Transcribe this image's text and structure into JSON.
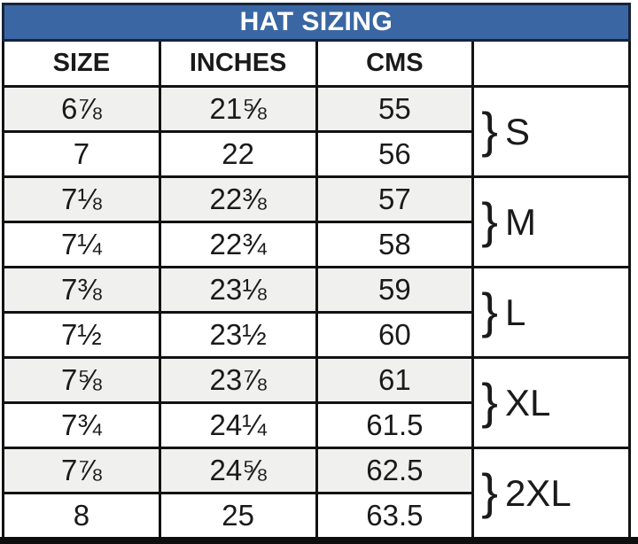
{
  "chart_data": {
    "type": "table",
    "title": "HAT SIZING",
    "columns": [
      "SIZE",
      "INCHES",
      "CMS",
      ""
    ],
    "rows": [
      [
        "6⅞",
        "21⅝",
        "55"
      ],
      [
        "7",
        "22",
        "56"
      ],
      [
        "7⅛",
        "22⅜",
        "57"
      ],
      [
        "7¼",
        "22¾",
        "58"
      ],
      [
        "7⅜",
        "23⅛",
        "59"
      ],
      [
        "7½",
        "23½",
        "60"
      ],
      [
        "7⅝",
        "23⅞",
        "61"
      ],
      [
        "7¾",
        "24¼",
        "61.5"
      ],
      [
        "7⅞",
        "24⅝",
        "62.5"
      ],
      [
        "8",
        "25",
        "63.5"
      ]
    ],
    "row_groups": [
      {
        "label": "S",
        "rows": [
          0,
          1
        ]
      },
      {
        "label": "M",
        "rows": [
          2,
          3
        ]
      },
      {
        "label": "L",
        "rows": [
          4,
          5
        ]
      },
      {
        "label": "XL",
        "rows": [
          6,
          7
        ]
      },
      {
        "label": "2XL",
        "rows": [
          8,
          9
        ]
      }
    ],
    "brace_glyph": "}",
    "layout_hints": {
      "shaded_row_indices": [
        0,
        2,
        4,
        6,
        8
      ],
      "grid": true
    }
  },
  "colors": {
    "title_bg": "#3a67a4",
    "title_text": "#ffffff",
    "title_border": "#17233c",
    "grid_border": "#121212",
    "row_shaded_bg": "#f0f0ef",
    "row_bg": "#ffffff",
    "bottom_bar": "#0e0e0e"
  }
}
